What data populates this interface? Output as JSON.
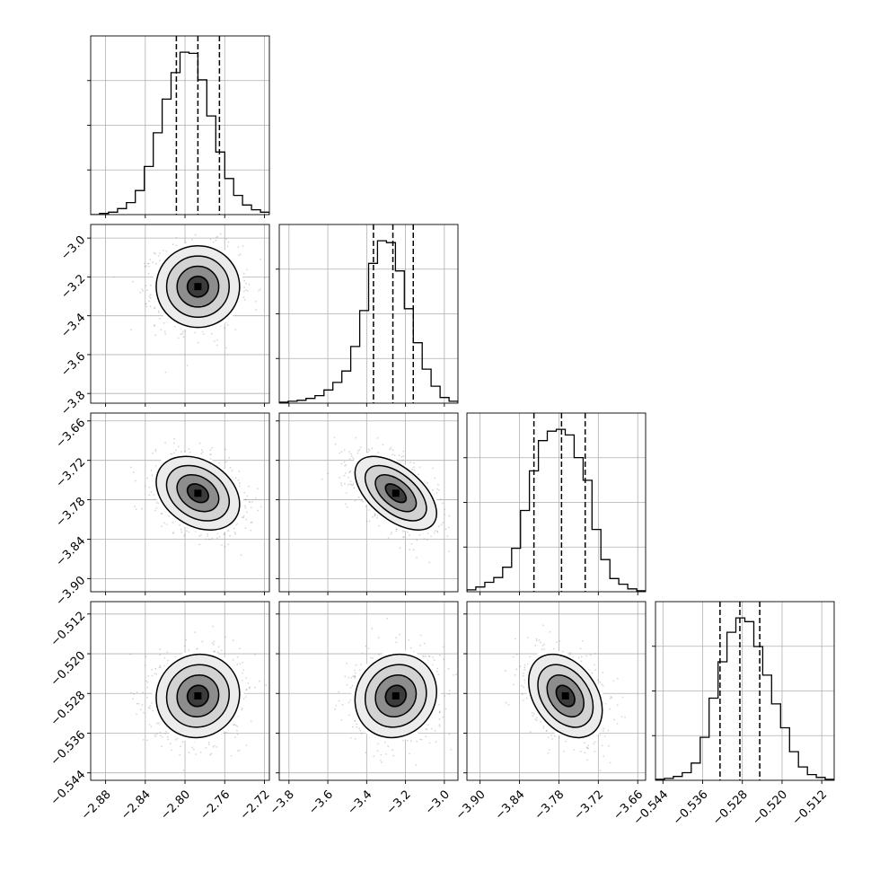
{
  "chart_data": {
    "type": "corner",
    "n_params": 4,
    "grid": true,
    "params": [
      {
        "index": 0,
        "range": [
          -2.895,
          -2.715
        ],
        "ticks": [
          -2.88,
          -2.84,
          -2.8,
          -2.76,
          -2.72
        ],
        "tick_labels": [
          "−2.88",
          "−2.84",
          "−2.80",
          "−2.76",
          "−2.72"
        ],
        "mean": -2.787,
        "sigma": 0.021,
        "quantiles": [
          -2.8087,
          -2.787,
          -2.7653
        ],
        "hist_counts": [
          0,
          1,
          2,
          5,
          10,
          20,
          40,
          68,
          96,
          118,
          135,
          134,
          112,
          82,
          52,
          30,
          16,
          8,
          4,
          2
        ]
      },
      {
        "index": 1,
        "range": [
          -3.85,
          -2.93
        ],
        "ticks": [
          -3.8,
          -3.6,
          -3.4,
          -3.2,
          -3.0
        ],
        "tick_labels": [
          "−3.8",
          "−3.6",
          "−3.4",
          "−3.2",
          "−3.0"
        ],
        "mean": -3.25,
        "sigma": 0.105,
        "quantiles": [
          -3.365,
          -3.265,
          -3.16
        ],
        "hist_counts": [
          1,
          2,
          3,
          5,
          8,
          14,
          22,
          34,
          60,
          98,
          148,
          172,
          170,
          140,
          100,
          64,
          36,
          18,
          6,
          2
        ]
      },
      {
        "index": 2,
        "range": [
          -3.92,
          -3.648
        ],
        "ticks": [
          -3.9,
          -3.84,
          -3.78,
          -3.72,
          -3.66
        ],
        "tick_labels": [
          "−3.90",
          "−3.84",
          "−3.78",
          "−3.72",
          "−3.66"
        ],
        "mean": -3.77,
        "sigma": 0.028,
        "quantiles": [
          -3.818,
          -3.776,
          -3.74
        ],
        "hist_counts": [
          2,
          5,
          10,
          15,
          26,
          46,
          86,
          128,
          160,
          170,
          172,
          166,
          142,
          118,
          66,
          34,
          14,
          8,
          3,
          1
        ]
      },
      {
        "index": 3,
        "range": [
          -0.5455,
          -0.5095
        ],
        "ticks": [
          -0.544,
          -0.536,
          -0.528,
          -0.52,
          -0.512
        ],
        "tick_labels": [
          "−0.544",
          "−0.536",
          "−0.528",
          "−0.520",
          "−0.512"
        ],
        "mean": -0.5285,
        "sigma": 0.0042,
        "quantiles": [
          -0.5325,
          -0.5285,
          -0.5245
        ],
        "hist_counts": [
          1,
          2,
          4,
          8,
          18,
          45,
          86,
          124,
          155,
          170,
          166,
          140,
          110,
          80,
          55,
          30,
          14,
          6,
          3,
          1
        ]
      }
    ],
    "correlations": {
      "1-0": 0.0,
      "2-0": -0.3,
      "2-1": -0.55,
      "3-0": 0.05,
      "3-1": 0.1,
      "3-2": -0.35
    },
    "contour_levels_sigma": [
      0.5,
      1.0,
      1.5,
      2.0
    ]
  }
}
